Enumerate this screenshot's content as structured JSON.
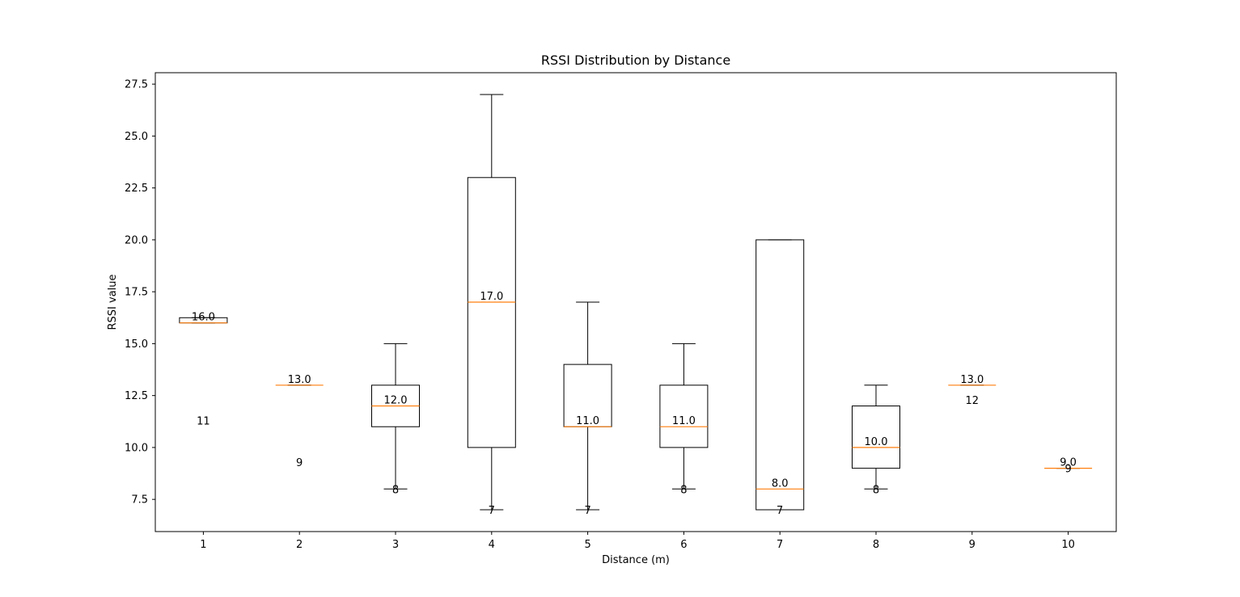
{
  "chart_data": {
    "type": "boxplot",
    "title": "RSSI Distribution by Distance",
    "xlabel": "Distance (m)",
    "ylabel": "RSSI value",
    "categories": [
      "1",
      "2",
      "3",
      "4",
      "5",
      "6",
      "7",
      "8",
      "9",
      "10"
    ],
    "ylim": [
      5.95,
      28.05
    ],
    "yticks": [
      7.5,
      10.0,
      12.5,
      15.0,
      17.5,
      20.0,
      22.5,
      25.0,
      27.5
    ],
    "ytick_labels": [
      "7.5",
      "10.0",
      "12.5",
      "15.0",
      "17.5",
      "20.0",
      "22.5",
      "25.0",
      "27.5"
    ],
    "grid": false,
    "boxes": [
      {
        "category": "1",
        "whislo": 16,
        "q1": 16,
        "med": 16,
        "q3": 16.25,
        "whishi": 16.25,
        "median_label": "16.0",
        "count_label": "11",
        "count_label_y": 11.3
      },
      {
        "category": "2",
        "whislo": 13,
        "q1": 13,
        "med": 13,
        "q3": 13,
        "whishi": 13,
        "median_label": "13.0",
        "count_label": "9",
        "count_label_y": 9.3
      },
      {
        "category": "3",
        "whislo": 8,
        "q1": 11,
        "med": 12,
        "q3": 13,
        "whishi": 15,
        "median_label": "12.0",
        "count_label": "8",
        "count_label_y": 8.0
      },
      {
        "category": "4",
        "whislo": 7,
        "q1": 10,
        "med": 17,
        "q3": 23,
        "whishi": 27,
        "median_label": "17.0",
        "count_label": "7",
        "count_label_y": 7.0
      },
      {
        "category": "5",
        "whislo": 7,
        "q1": 11,
        "med": 11,
        "q3": 14,
        "whishi": 17,
        "median_label": "11.0",
        "count_label": "7",
        "count_label_y": 7.0
      },
      {
        "category": "6",
        "whislo": 8,
        "q1": 10,
        "med": 11,
        "q3": 13,
        "whishi": 15,
        "median_label": "11.0",
        "count_label": "8",
        "count_label_y": 8.0
      },
      {
        "category": "7",
        "whislo": 7,
        "q1": 7,
        "med": 8,
        "q3": 20,
        "whishi": 20,
        "median_label": "8.0",
        "count_label": "7",
        "count_label_y": 7.0
      },
      {
        "category": "8",
        "whislo": 8,
        "q1": 9,
        "med": 10,
        "q3": 12,
        "whishi": 13,
        "median_label": "10.0",
        "count_label": "8",
        "count_label_y": 8.0
      },
      {
        "category": "9",
        "whislo": 13,
        "q1": 13,
        "med": 13,
        "q3": 13,
        "whishi": 13,
        "median_label": "13.0",
        "count_label": "12",
        "count_label_y": 12.3
      },
      {
        "category": "10",
        "whislo": 9,
        "q1": 9,
        "med": 9,
        "q3": 9,
        "whishi": 9,
        "median_label": "9.0",
        "count_label": "9",
        "count_label_y": 9.0
      }
    ],
    "colors": {
      "box": "#000000",
      "median": "#ff7f0e",
      "background": "#ffffff"
    }
  }
}
